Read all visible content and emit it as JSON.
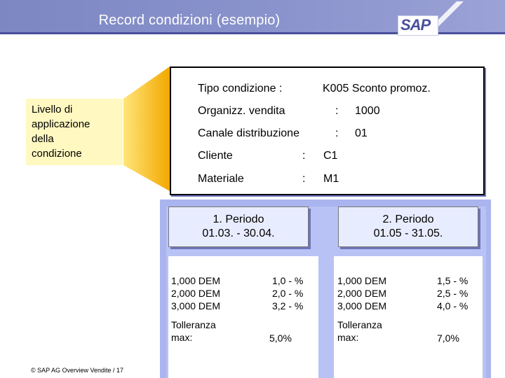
{
  "header": {
    "title": "Record condizioni (esempio)",
    "logo_text": "SAP"
  },
  "side_label": "Livello di\napplicazione\ndella\ncondizione",
  "condition_record": {
    "tipo": {
      "label": "Tipo condizione  :",
      "value": "K005 Sconto promoz."
    },
    "organizz": {
      "label": "Organizz. vendita",
      "colon": ":",
      "value": "1000"
    },
    "canale": {
      "label": "Canale distribuzione",
      "colon": ":",
      "value": "01"
    },
    "cliente": {
      "label": "Cliente",
      "colon": ":",
      "value": "C1"
    },
    "materiale": {
      "label": "Materiale",
      "colon": ":",
      "value": "M1"
    }
  },
  "periods": [
    {
      "name": "1. Periodo",
      "range": "01.03. - 30.04.",
      "scales": [
        "1,000 DEM",
        "2,000 DEM",
        "3,000 DEM"
      ],
      "rates": [
        "1,0 - %",
        "2,0 - %",
        "3,2 - %"
      ],
      "tolerance_label": "Tolleranza\nmax:",
      "tolerance_value": "5,0%"
    },
    {
      "name": "2. Periodo",
      "range": "01.05 - 31.05.",
      "scales": [
        "1,000 DEM",
        "2,000 DEM",
        "3,000 DEM"
      ],
      "rates": [
        "1,5 - %",
        "2,5 - %",
        "4,0 - %"
      ],
      "tolerance_label": "Tolleranza\nmax:",
      "tolerance_value": "7,0%"
    }
  ],
  "footer": "©  SAP AG Overview Vendite  / 17",
  "colors": {
    "header": "#8a93cc",
    "accent": "#4a4f9c",
    "panel": "#aab4ee",
    "note": "#fff8c0",
    "funnel": "#f7b800"
  }
}
